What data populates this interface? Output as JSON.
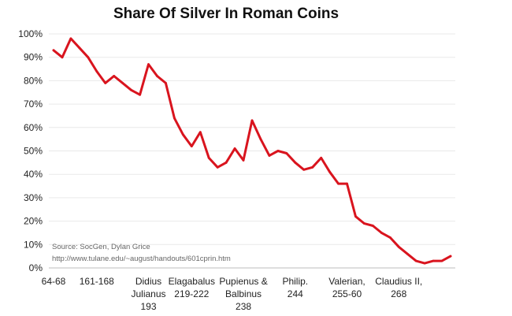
{
  "chart_data": {
    "type": "line",
    "title": "Share Of Silver In Roman Coins",
    "xlabel": "",
    "ylabel": "",
    "ylim": [
      0,
      100
    ],
    "grid": true,
    "legend": "none",
    "y_ticks": [
      "0%",
      "10%",
      "20%",
      "30%",
      "40%",
      "50%",
      "60%",
      "70%",
      "80%",
      "90%",
      "100%"
    ],
    "x_tick_labels": [
      {
        "lines": [
          "64-68"
        ],
        "at": 0
      },
      {
        "lines": [
          "161-168"
        ],
        "at": 5
      },
      {
        "lines": [
          "Didius",
          "Julianus",
          "193"
        ],
        "at": 11
      },
      {
        "lines": [
          "Elagabalus",
          "219-222"
        ],
        "at": 16
      },
      {
        "lines": [
          "Pupienus &",
          "Balbinus",
          "238"
        ],
        "at": 22
      },
      {
        "lines": [
          "Philip.",
          "244"
        ],
        "at": 28
      },
      {
        "lines": [
          "Valerian,",
          "255-60"
        ],
        "at": 34
      },
      {
        "lines": [
          "Claudius II,",
          "268"
        ],
        "at": 40
      }
    ],
    "series": [
      {
        "color": "#d9141e",
        "values": [
          93,
          90,
          98,
          94,
          90,
          84,
          79,
          82,
          79,
          76,
          74,
          87,
          82,
          79,
          64,
          57,
          52,
          58,
          47,
          43,
          45,
          51,
          46,
          63,
          55,
          48,
          50,
          49,
          45,
          42,
          43,
          47,
          41,
          36,
          36,
          22,
          19,
          18,
          15,
          13,
          9,
          6,
          3,
          2,
          3,
          3,
          5
        ]
      }
    ],
    "source_lines": [
      "Source: SocGen, Dylan Grice",
      "http://www.tulane.edu/~august/handouts/601cprin.htm"
    ]
  }
}
